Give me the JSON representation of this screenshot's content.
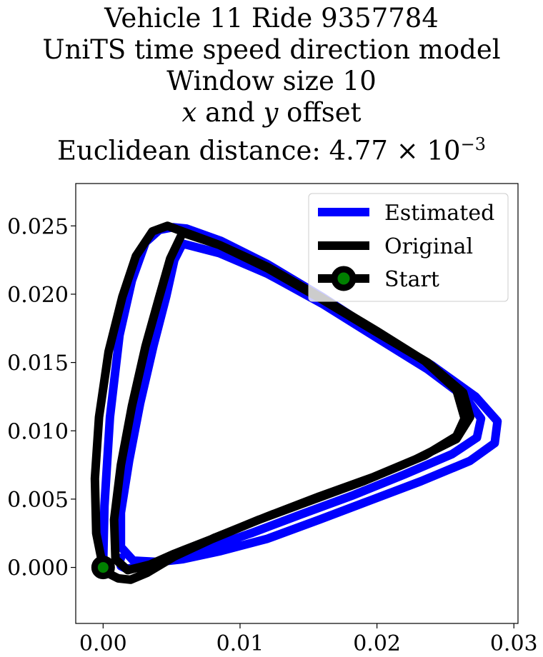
{
  "title": {
    "line1": "Vehicle 11 Ride 9357784",
    "line2": "UniTS time speed direction model",
    "line3": "Window size 10",
    "line4_x": "x",
    "line4_and": " and ",
    "line4_y": "y",
    "line4_rest": " offset",
    "line5_prefix": "Euclidean distance: 4.77",
    "line5_times": " × 10",
    "line5_exp": "−3"
  },
  "chart_data": {
    "type": "line",
    "xlim": [
      -0.002,
      0.0303
    ],
    "ylim": [
      -0.0041,
      0.0281
    ],
    "xticks": [
      0.0,
      0.01,
      0.02,
      0.03
    ],
    "xtick_labels": [
      "0.00",
      "0.01",
      "0.02",
      "0.03"
    ],
    "yticks": [
      0.0,
      0.005,
      0.01,
      0.015,
      0.02,
      0.025
    ],
    "ytick_labels": [
      "0.000",
      "0.005",
      "0.010",
      "0.015",
      "0.020",
      "0.025"
    ],
    "grid": false,
    "legend_position": "top-right",
    "colors": {
      "estimated": "#0000ff",
      "original": "#000000",
      "start_marker": "#008000"
    },
    "series": [
      {
        "name": "Estimated",
        "color": "#0000ff",
        "x": [
          0.0,
          0.0001,
          0.0005,
          0.0012,
          0.0021,
          0.0031,
          0.0041,
          0.0051,
          0.0061,
          0.0086,
          0.012,
          0.016,
          0.02,
          0.024,
          0.0272,
          0.0288,
          0.0286,
          0.0268,
          0.0232,
          0.0195,
          0.0158,
          0.012,
          0.0086,
          0.0058,
          0.004,
          0.0022,
          0.0013,
          0.0013,
          0.0019,
          0.0027,
          0.0037,
          0.0046,
          0.0052,
          0.0058,
          0.0085,
          0.012,
          0.016,
          0.02,
          0.0237,
          0.0265,
          0.0276,
          0.0273,
          0.0255,
          0.022,
          0.0183,
          0.0145,
          0.0108,
          0.0076,
          0.0053,
          0.0041,
          0.0031,
          0.0023,
          0.0017,
          0.0013,
          0.0012,
          0.0013
        ],
        "y": [
          0.0001,
          0.0045,
          0.011,
          0.017,
          0.021,
          0.0238,
          0.0247,
          0.0249,
          0.0248,
          0.0239,
          0.0222,
          0.0198,
          0.0172,
          0.0148,
          0.0125,
          0.0107,
          0.0091,
          0.0078,
          0.0063,
          0.0049,
          0.0035,
          0.0021,
          0.0012,
          0.0006,
          0.0004,
          0.0005,
          0.0015,
          0.004,
          0.0078,
          0.012,
          0.0163,
          0.0198,
          0.0225,
          0.0237,
          0.023,
          0.0215,
          0.0193,
          0.0168,
          0.0145,
          0.0124,
          0.0109,
          0.0095,
          0.0083,
          0.0068,
          0.0053,
          0.0039,
          0.0025,
          0.0014,
          0.0008,
          0.0004,
          0.0002,
          0.0,
          -0.0001,
          0.0001,
          0.0004,
          0.0007
        ]
      },
      {
        "name": "Original",
        "color": "#000000",
        "x": [
          0.0,
          -0.0005,
          -0.0006,
          -0.0003,
          0.0004,
          0.0014,
          0.0024,
          0.0036,
          0.0047,
          0.0055,
          0.0085,
          0.012,
          0.016,
          0.02,
          0.0237,
          0.0263,
          0.0268,
          0.0258,
          0.0228,
          0.019,
          0.0152,
          0.0114,
          0.008,
          0.0052,
          0.0034,
          0.0018,
          0.0009,
          0.0008,
          0.0013,
          0.0021,
          0.0031,
          0.0041,
          0.0049,
          0.0058,
          0.0085,
          0.012,
          0.016,
          0.02,
          0.0235,
          0.0258,
          0.0264,
          0.0258,
          0.0235,
          0.0197,
          0.0158,
          0.0119,
          0.0082,
          0.0052,
          0.0032,
          0.002,
          0.0011,
          0.0005,
          0.0001,
          0.0
        ],
        "y": [
          0.0,
          0.0025,
          0.0065,
          0.011,
          0.0158,
          0.0198,
          0.0228,
          0.0246,
          0.025,
          0.0247,
          0.0236,
          0.0219,
          0.0196,
          0.0172,
          0.015,
          0.0128,
          0.011,
          0.0094,
          0.0079,
          0.0063,
          0.0049,
          0.0035,
          0.0021,
          0.001,
          0.0002,
          -0.0002,
          0.0006,
          0.0035,
          0.0075,
          0.0118,
          0.0162,
          0.0198,
          0.0226,
          0.0245,
          0.0236,
          0.022,
          0.0197,
          0.0173,
          0.0151,
          0.013,
          0.0109,
          0.0096,
          0.0082,
          0.0066,
          0.0052,
          0.0037,
          0.0022,
          0.0008,
          -0.0004,
          -0.0009,
          -0.0008,
          -0.0005,
          -0.0002,
          0.0
        ]
      }
    ],
    "start_point": {
      "name": "Start",
      "x": 0.0,
      "y": 0.0
    }
  },
  "legend": {
    "estimated_label": "Estimated",
    "original_label": "Original",
    "start_label": "Start"
  }
}
